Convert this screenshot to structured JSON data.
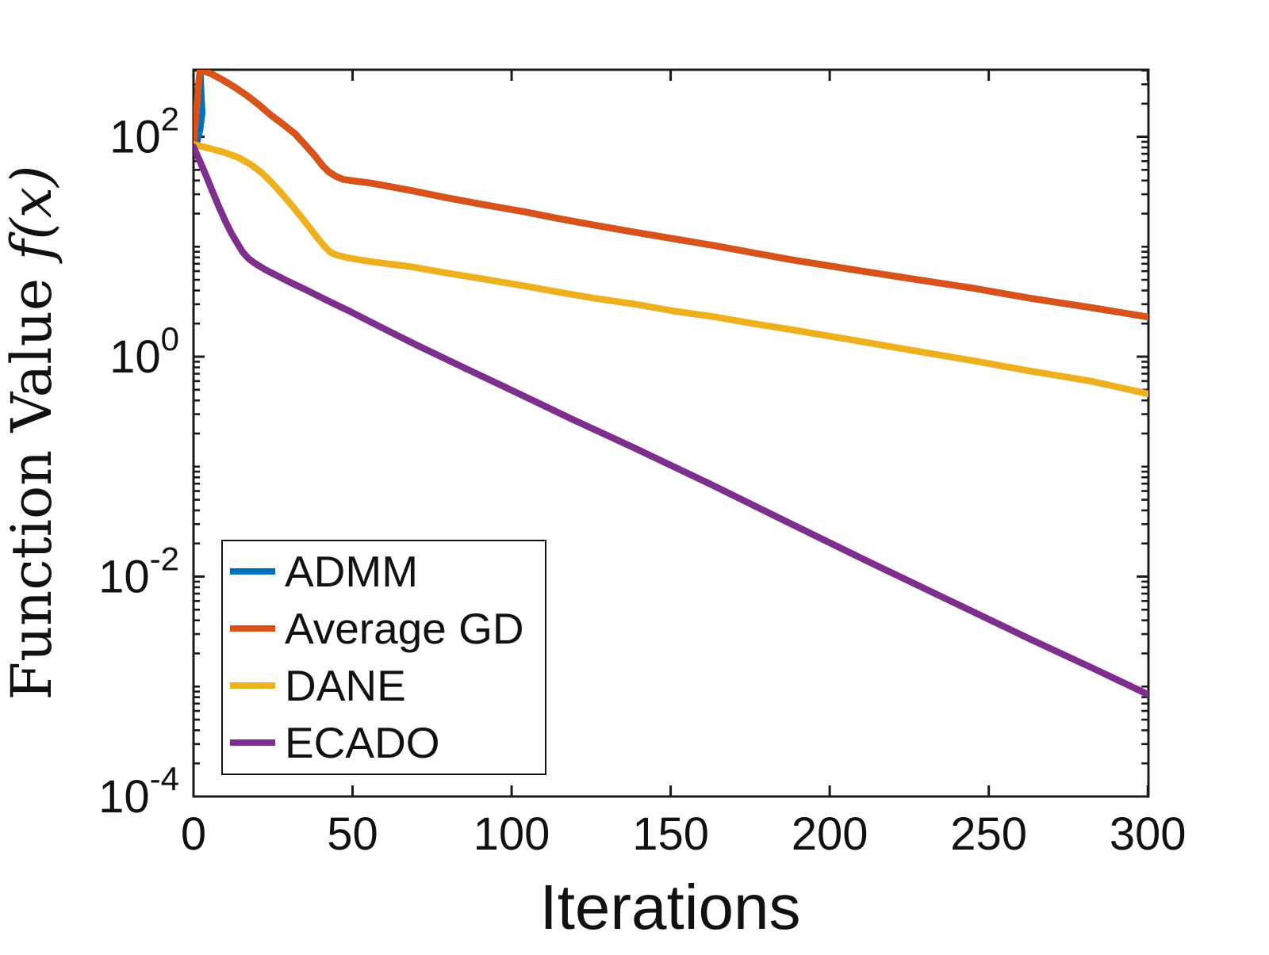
{
  "figure": {
    "background_color": "#ffffff",
    "axis_color": "#1a1a1a",
    "text_color": "#111111"
  },
  "labels": {
    "ylabel_roman": "Function Value ",
    "ylabel_math": "f(x)",
    "xlabel": "Iterations"
  },
  "chart_data": {
    "type": "line",
    "title": "",
    "xlabel": "Iterations",
    "ylabel": "Function Value f(x)",
    "x_axis": {
      "label": "Iterations",
      "min": 0,
      "max": 300,
      "ticks": [
        0,
        50,
        100,
        150,
        200,
        250,
        300
      ]
    },
    "y_axis": {
      "scale": "log",
      "min": 0.0001,
      "max": 407,
      "major_tick_exponents": [
        2,
        0,
        -2,
        -4
      ],
      "tick_labels": [
        "10^2",
        "10^0",
        "10^-2",
        "10^-4"
      ],
      "minor_ticks": "log decades and mantissas 2-9"
    },
    "legend": {
      "position": "lower-left",
      "border": true,
      "entries": [
        "ADMM",
        "Average GD",
        "DANE",
        "ECADO"
      ]
    },
    "series": [
      {
        "name": "ADMM",
        "color": "#0072BD",
        "note": "almost entirely hidden behind Average GD; briefly visible near iteration 2-3",
        "points": [
          [
            0,
            85
          ],
          [
            1,
            88
          ],
          [
            2,
            115
          ],
          [
            2.7,
            165
          ],
          [
            2.3,
            280
          ],
          [
            2.1,
            406
          ],
          [
            5.6,
            374
          ],
          [
            9.3,
            327
          ],
          [
            13,
            282
          ],
          [
            17,
            235
          ],
          [
            20.5,
            196
          ],
          [
            24,
            160
          ],
          [
            28,
            131
          ],
          [
            32,
            106
          ],
          [
            35,
            85
          ],
          [
            38,
            68
          ],
          [
            40.5,
            55
          ],
          [
            42.5,
            48
          ],
          [
            44.5,
            44
          ],
          [
            47,
            41
          ],
          [
            50,
            39.8
          ],
          [
            56,
            37.8
          ],
          [
            68,
            32.6
          ],
          [
            79,
            28.1
          ],
          [
            91,
            24.2
          ],
          [
            104,
            20.8
          ],
          [
            114,
            18.2
          ],
          [
            126,
            15.7
          ],
          [
            139,
            13.5
          ],
          [
            151,
            11.8
          ],
          [
            164,
            10.2
          ],
          [
            176,
            8.8
          ],
          [
            188,
            7.6
          ],
          [
            207,
            6.2
          ],
          [
            226,
            5.1
          ],
          [
            245,
            4.2
          ],
          [
            263,
            3.4
          ],
          [
            282,
            2.8
          ],
          [
            300,
            2.3
          ]
        ]
      },
      {
        "name": "Average GD",
        "color": "#D95319",
        "points": [
          [
            0,
            85
          ],
          [
            2,
            406
          ],
          [
            5.6,
            374
          ],
          [
            9.3,
            327
          ],
          [
            13,
            282
          ],
          [
            17,
            235
          ],
          [
            20.5,
            196
          ],
          [
            24,
            160
          ],
          [
            28,
            131
          ],
          [
            32,
            106
          ],
          [
            35,
            85
          ],
          [
            38,
            68
          ],
          [
            40.5,
            55
          ],
          [
            42.5,
            48
          ],
          [
            44.5,
            44
          ],
          [
            47,
            41
          ],
          [
            50,
            39.8
          ],
          [
            56,
            37.8
          ],
          [
            68,
            32.6
          ],
          [
            79,
            28.1
          ],
          [
            91,
            24.2
          ],
          [
            104,
            20.8
          ],
          [
            114,
            18.2
          ],
          [
            126,
            15.7
          ],
          [
            139,
            13.5
          ],
          [
            151,
            11.8
          ],
          [
            164,
            10.2
          ],
          [
            176,
            8.8
          ],
          [
            188,
            7.6
          ],
          [
            207,
            6.2
          ],
          [
            226,
            5.1
          ],
          [
            245,
            4.2
          ],
          [
            263,
            3.4
          ],
          [
            282,
            2.8
          ],
          [
            300,
            2.3
          ]
        ]
      },
      {
        "name": "DANE",
        "color": "#EDB120",
        "points": [
          [
            0,
            85
          ],
          [
            4.6,
            79
          ],
          [
            9,
            73
          ],
          [
            14,
            65
          ],
          [
            18,
            56
          ],
          [
            21.5,
            47
          ],
          [
            24.5,
            38.5
          ],
          [
            27.5,
            31
          ],
          [
            30.5,
            24.6
          ],
          [
            33.5,
            19.2
          ],
          [
            36.5,
            14.9
          ],
          [
            39,
            12
          ],
          [
            41,
            10.2
          ],
          [
            43,
            8.9
          ],
          [
            45,
            8.4
          ],
          [
            48,
            8.0
          ],
          [
            51,
            7.7
          ],
          [
            56,
            7.3
          ],
          [
            68,
            6.6
          ],
          [
            79,
            5.8
          ],
          [
            91,
            5.1
          ],
          [
            104,
            4.4
          ],
          [
            114,
            3.9
          ],
          [
            126,
            3.4
          ],
          [
            139,
            3.0
          ],
          [
            151,
            2.6
          ],
          [
            164,
            2.3
          ],
          [
            176,
            2.0
          ],
          [
            188,
            1.76
          ],
          [
            207,
            1.42
          ],
          [
            226,
            1.14
          ],
          [
            245,
            0.92
          ],
          [
            263,
            0.74
          ],
          [
            282,
            0.6
          ],
          [
            300,
            0.46
          ]
        ]
      },
      {
        "name": "ECADO",
        "color": "#7E2F8E",
        "points": [
          [
            0,
            81
          ],
          [
            2,
            60
          ],
          [
            4,
            44
          ],
          [
            6,
            31.6
          ],
          [
            8,
            23
          ],
          [
            10,
            17.1
          ],
          [
            12,
            13.1
          ],
          [
            14,
            10.5
          ],
          [
            15.5,
            8.9
          ],
          [
            17.3,
            7.8
          ],
          [
            19.5,
            7.0
          ],
          [
            22.5,
            6.2
          ],
          [
            26,
            5.5
          ],
          [
            30,
            4.8
          ],
          [
            35,
            4.1
          ],
          [
            41.5,
            3.3
          ],
          [
            49,
            2.6
          ],
          [
            59,
            1.85
          ],
          [
            71,
            1.24
          ],
          [
            86,
            0.77
          ],
          [
            101,
            0.48
          ],
          [
            119,
            0.27
          ],
          [
            139,
            0.146
          ],
          [
            164,
            0.066
          ],
          [
            188,
            0.03
          ],
          [
            213,
            0.0133
          ],
          [
            238,
            0.006
          ],
          [
            263,
            0.0027
          ],
          [
            282,
            0.0015
          ],
          [
            300,
            0.00085
          ]
        ]
      }
    ]
  }
}
